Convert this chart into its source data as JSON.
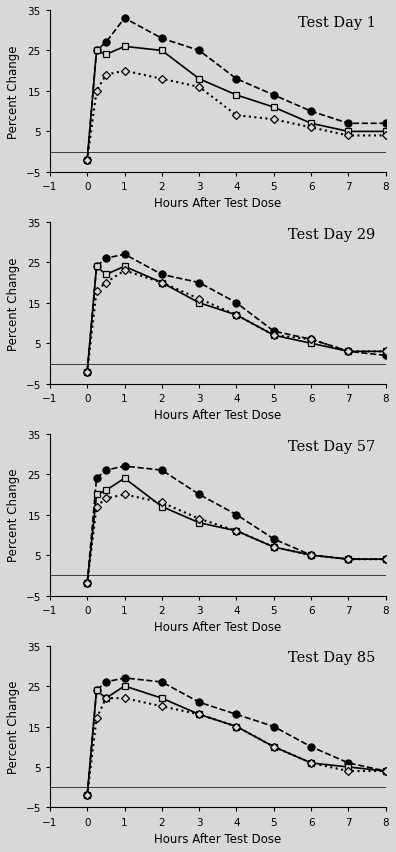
{
  "panels": [
    {
      "title": "Test Day 1",
      "x": [
        0,
        0.25,
        0.5,
        1,
        2,
        3,
        4,
        5,
        6,
        7,
        8
      ],
      "fc": [
        -2,
        25,
        27,
        33,
        28,
        25,
        18,
        14,
        10,
        7,
        7
      ],
      "sq": [
        -2,
        25,
        24,
        26,
        25,
        18,
        14,
        11,
        7,
        5,
        5
      ],
      "di": [
        -2,
        15,
        19,
        20,
        18,
        16,
        9,
        8,
        6,
        4,
        4
      ]
    },
    {
      "title": "Test Day 29",
      "x": [
        0,
        0.25,
        0.5,
        1,
        2,
        3,
        4,
        5,
        6,
        7,
        8
      ],
      "fc": [
        -2,
        24,
        26,
        27,
        22,
        20,
        15,
        8,
        6,
        3,
        2
      ],
      "sq": [
        -2,
        24,
        22,
        24,
        20,
        15,
        12,
        7,
        5,
        3,
        3
      ],
      "di": [
        -2,
        18,
        20,
        23,
        20,
        16,
        12,
        7,
        6,
        3,
        3
      ]
    },
    {
      "title": "Test Day 57",
      "x": [
        0,
        0.25,
        0.5,
        1,
        2,
        3,
        4,
        5,
        6,
        7,
        8
      ],
      "fc": [
        -2,
        24,
        26,
        27,
        26,
        20,
        15,
        9,
        5,
        4,
        4
      ],
      "sq": [
        -2,
        20,
        21,
        24,
        17,
        13,
        11,
        7,
        5,
        4,
        4
      ],
      "di": [
        -2,
        17,
        19,
        20,
        18,
        14,
        11,
        7,
        5,
        4,
        4
      ]
    },
    {
      "title": "Test Day 85",
      "x": [
        0,
        0.25,
        0.5,
        1,
        2,
        3,
        4,
        5,
        6,
        7,
        8
      ],
      "fc": [
        -2,
        24,
        26,
        27,
        26,
        21,
        18,
        15,
        10,
        6,
        4
      ],
      "sq": [
        -2,
        24,
        22,
        25,
        22,
        18,
        15,
        10,
        6,
        5,
        4
      ],
      "di": [
        -2,
        17,
        22,
        22,
        20,
        18,
        15,
        10,
        6,
        4,
        4
      ]
    }
  ],
  "xlim": [
    -1,
    8
  ],
  "ylim": [
    -5,
    35
  ],
  "yticks": [
    -5,
    5,
    15,
    25,
    35
  ],
  "xticks": [
    -1,
    0,
    1,
    2,
    3,
    4,
    5,
    6,
    7,
    8
  ],
  "xlabel": "Hours After Test Dose",
  "ylabel": "Percent Change",
  "bg_color": "#d8d8d8"
}
